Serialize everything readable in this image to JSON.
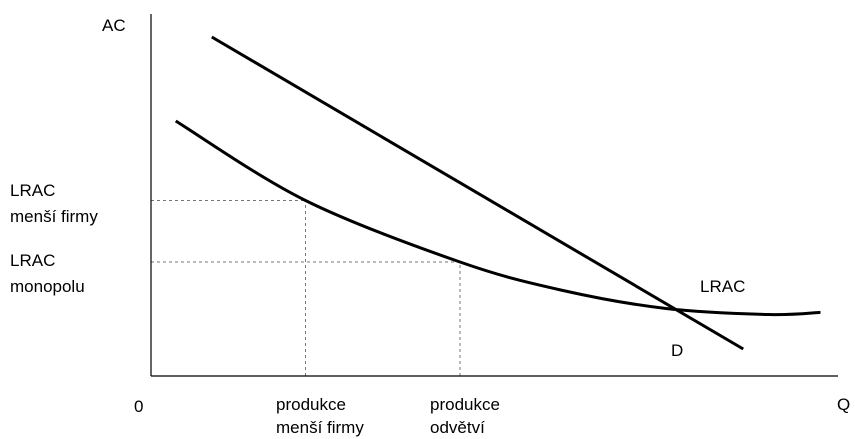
{
  "chart_data": {
    "type": "line",
    "title": "",
    "xlabel": "Q",
    "ylabel": "AC",
    "origin_label": "0",
    "grid": false,
    "series": [
      {
        "name": "D",
        "points": [
          [
            0.59,
            11.3
          ],
          [
            5.75,
            0.9
          ]
        ]
      },
      {
        "name": "LRAC",
        "points": [
          [
            0.24,
            8.5
          ],
          [
            1.5,
            5.85
          ],
          [
            3.0,
            3.8
          ],
          [
            4.0,
            2.85
          ],
          [
            5.0,
            2.25
          ],
          [
            6.0,
            2.05
          ],
          [
            6.5,
            2.12
          ]
        ]
      }
    ],
    "y_levels": [
      {
        "label_lines": [
          "LRAC",
          "menší firmy"
        ],
        "y": 5.85
      },
      {
        "label_lines": [
          "LRAC",
          "monopolu"
        ],
        "y": 3.8
      }
    ],
    "x_levels": [
      {
        "label_lines": [
          "produkce",
          "menší firmy"
        ],
        "x": 1.5
      },
      {
        "label_lines": [
          "produkce",
          "odvětví"
        ],
        "x": 3.0
      }
    ]
  }
}
